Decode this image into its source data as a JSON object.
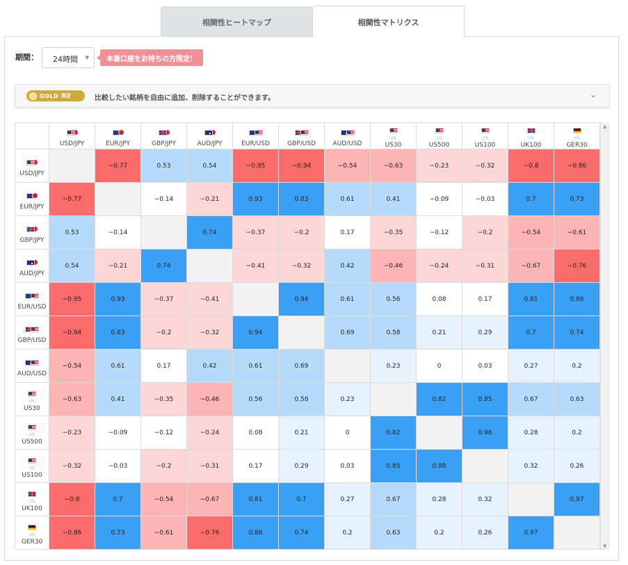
{
  "tabs": [
    {
      "label": "相関性ヒートマップ"
    },
    {
      "label": "相関性マトリクス"
    }
  ],
  "controls": {
    "period_label": "期間：",
    "period_value": "24時間",
    "promo_label": "本番口座をお持ちの方限定！"
  },
  "gold_bar": {
    "badge_word": "GOLD",
    "badge_tag": "限定",
    "message": "比較したい銘柄を自由に追加、削除することができます。"
  },
  "matrix": {
    "instruments": [
      {
        "label": "USD/JPY",
        "flags": [
          "us",
          "jp"
        ],
        "cfd": false
      },
      {
        "label": "EUR/JPY",
        "flags": [
          "eu",
          "jp"
        ],
        "cfd": false
      },
      {
        "label": "GBP/JPY",
        "flags": [
          "gb",
          "jp"
        ],
        "cfd": false
      },
      {
        "label": "AUD/JPY",
        "flags": [
          "au",
          "jp"
        ],
        "cfd": false
      },
      {
        "label": "EUR/USD",
        "flags": [
          "eu",
          "us"
        ],
        "cfd": false
      },
      {
        "label": "GBP/USD",
        "flags": [
          "gb",
          "us"
        ],
        "cfd": false
      },
      {
        "label": "AUD/USD",
        "flags": [
          "au",
          "us"
        ],
        "cfd": false
      },
      {
        "label": "US30",
        "flags": [
          "us"
        ],
        "cfd": true
      },
      {
        "label": "US500",
        "flags": [
          "us"
        ],
        "cfd": true
      },
      {
        "label": "US100",
        "flags": [
          "us"
        ],
        "cfd": true
      },
      {
        "label": "UK100",
        "flags": [
          "gb"
        ],
        "cfd": true
      },
      {
        "label": "GER30",
        "flags": [
          "de"
        ],
        "cfd": true
      }
    ],
    "cfd_tag": "CFD",
    "values": [
      [
        null,
        "-0.77",
        "0.53",
        "0.54",
        "-0.95",
        "-0.94",
        "-0.54",
        "-0.63",
        "-0.23",
        "-0.32",
        "-0.8",
        "-0.86"
      ],
      [
        "-0.77",
        null,
        "-0.14",
        "-0.21",
        "0.93",
        "0.83",
        "0.61",
        "0.41",
        "-0.09",
        "-0.03",
        "0.7",
        "0.73"
      ],
      [
        "0.53",
        "-0.14",
        null,
        "0.74",
        "-0.37",
        "-0.2",
        "0.17",
        "-0.35",
        "-0.12",
        "-0.2",
        "-0.54",
        "-0.61"
      ],
      [
        "0.54",
        "-0.21",
        "0.74",
        null,
        "-0.41",
        "-0.32",
        "0.42",
        "-0.46",
        "-0.24",
        "-0.31",
        "-0.67",
        "-0.76"
      ],
      [
        "-0.95",
        "0.93",
        "-0.37",
        "-0.41",
        null,
        "0.94",
        "0.61",
        "0.56",
        "0.08",
        "0.17",
        "0.81",
        "0.86"
      ],
      [
        "-0.94",
        "0.83",
        "-0.2",
        "-0.32",
        "0.94",
        null,
        "0.69",
        "0.58",
        "0.21",
        "0.29",
        "0.7",
        "0.74"
      ],
      [
        "-0.54",
        "0.61",
        "0.17",
        "0.42",
        "0.61",
        "0.69",
        null,
        "0.23",
        "0",
        "0.03",
        "0.27",
        "0.2"
      ],
      [
        "-0.63",
        "0.41",
        "-0.35",
        "-0.46",
        "0.56",
        "0.58",
        "0.23",
        null,
        "0.82",
        "0.85",
        "0.67",
        "0.63"
      ],
      [
        "-0.23",
        "-0.09",
        "-0.12",
        "-0.24",
        "0.08",
        "0.21",
        "0",
        "0.82",
        null,
        "0.98",
        "0.28",
        "0.2"
      ],
      [
        "-0.32",
        "-0.03",
        "-0.2",
        "-0.31",
        "0.17",
        "0.29",
        "0.03",
        "0.85",
        "0.98",
        null,
        "0.32",
        "0.26"
      ],
      [
        "-0.8",
        "0.7",
        "-0.54",
        "-0.67",
        "0.81",
        "0.7",
        "0.27",
        "0.67",
        "0.28",
        "0.32",
        null,
        "0.97"
      ],
      [
        "-0.86",
        "0.73",
        "-0.61",
        "-0.76",
        "0.86",
        "0.74",
        "0.2",
        "0.63",
        "0.2",
        "0.26",
        "0.97",
        null
      ]
    ]
  },
  "colors": {
    "strong_positive": "#3aa0f5",
    "positive": "#b6dbfa",
    "weak_positive": "#e6f2fd",
    "neutral": "#ffffff",
    "weak_negative": "#fdd7d7",
    "negative": "#fcb4b4",
    "strong_negative": "#fc6b6b",
    "diagonal": "#f2f2f2",
    "promo": "#f08f97",
    "gold": "#cfa93a"
  }
}
